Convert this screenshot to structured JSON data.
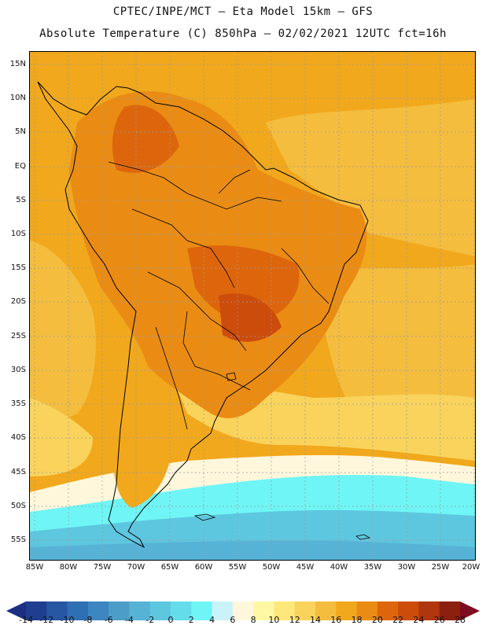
{
  "header": {
    "line1": "CPTEC/INPE/MCT –  Eta Model 15km – GFS",
    "line2": "Absolute Temperature (C) 850hPa – 02/02/2021 12UTC fct=16h"
  },
  "map": {
    "region": "South America",
    "lat_labels": [
      "15N",
      "10N",
      "5N",
      "EQ",
      "5S",
      "10S",
      "15S",
      "20S",
      "25S",
      "30S",
      "35S",
      "40S",
      "45S",
      "50S",
      "55S"
    ],
    "lon_labels": [
      "85W",
      "80W",
      "75W",
      "70W",
      "65W",
      "60W",
      "55W",
      "50W",
      "45W",
      "40W",
      "35W",
      "30W",
      "25W",
      "20W"
    ]
  },
  "colorbar": {
    "labels": [
      "-14",
      "-12",
      "-10",
      "-8",
      "-6",
      "-4",
      "-2",
      "0",
      "2",
      "4",
      "6",
      "8",
      "10",
      "12",
      "14",
      "16",
      "18",
      "20",
      "22",
      "24",
      "26",
      "28"
    ],
    "colors": [
      "#1f3e8f",
      "#2756a3",
      "#2f6fb3",
      "#3d86c1",
      "#4d9dc9",
      "#57b3d6",
      "#5ec7e0",
      "#65dcea",
      "#6ff5f5",
      "#c9f3f8",
      "#fff7dc",
      "#fff7a4",
      "#ffe87a",
      "#f9d35c",
      "#f4bd3e",
      "#f1a81c",
      "#ea8c14",
      "#dd660c",
      "#cc4c0c",
      "#b0360e",
      "#8c200e"
    ],
    "low_end_color": "#1c2f80",
    "high_end_color": "#7e0b1f"
  }
}
